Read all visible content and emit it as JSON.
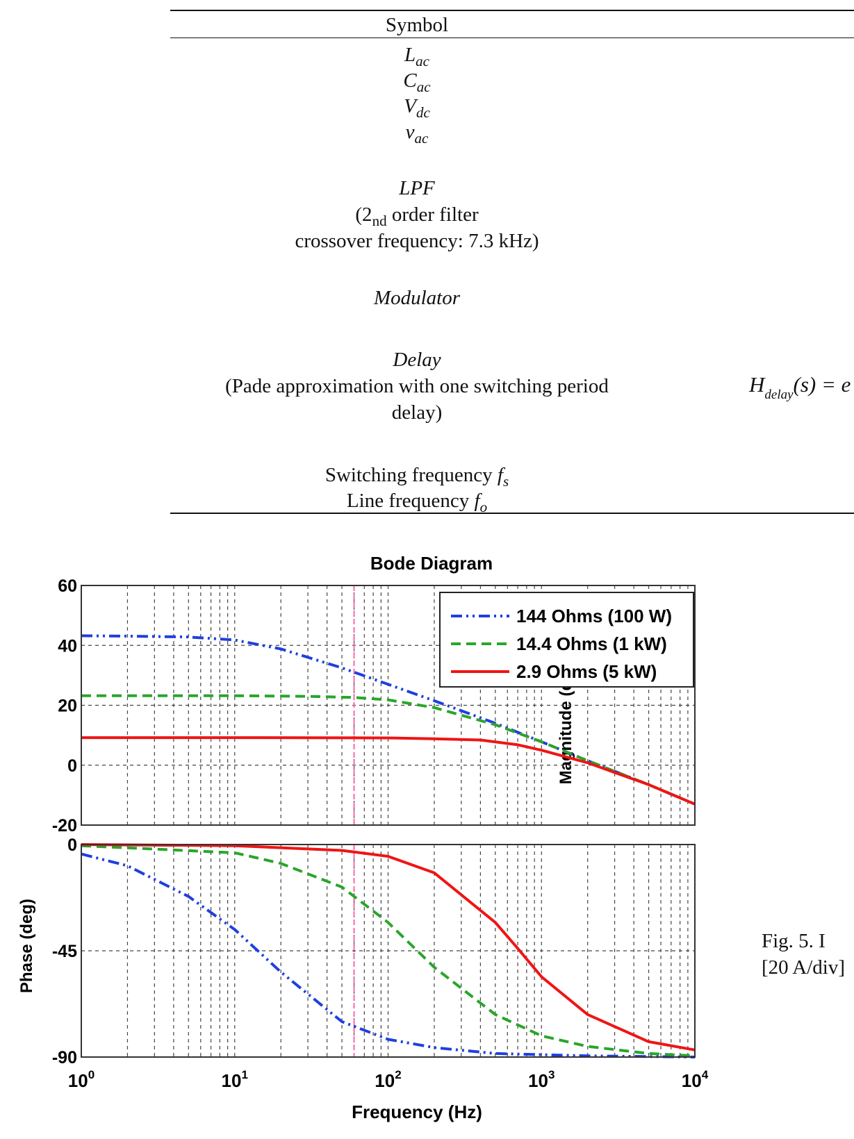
{
  "table": {
    "header": "Symbol",
    "symbols": [
      {
        "base": "L",
        "sub": "ac"
      },
      {
        "base": "C",
        "sub": "ac"
      },
      {
        "base": "V",
        "sub": "dc"
      },
      {
        "base": "v",
        "sub": "ac"
      }
    ],
    "lpf": {
      "name": "LPF",
      "line1_prefix": "(2",
      "line1_sub": "nd",
      "line1_suffix": " order filter",
      "line2": "crossover frequency: 7.3 kHz)"
    },
    "modulator": "Modulator",
    "delay": {
      "name": "Delay",
      "line1": "(Pade approximation with one switching period",
      "line2": "delay)",
      "formula_base": "H",
      "formula_sub": "delay",
      "formula_rest": "(s) = e"
    },
    "switching": {
      "label": "Switching frequency ",
      "symbol": "f",
      "sub": "s"
    },
    "line_freq": {
      "label": "Line frequency ",
      "symbol": "f",
      "sub": "o"
    }
  },
  "caption": {
    "line1": "Fig.  5.   I",
    "line2": "[20 A/div]"
  },
  "chart_data": {
    "type": "line",
    "title": "Bode Diagram",
    "xlabel": "Frequency  (Hz)",
    "x_scale": "log",
    "xlim": [
      1,
      10000
    ],
    "x_ticks": [
      {
        "base": "10",
        "exp": "0"
      },
      {
        "base": "10",
        "exp": "1"
      },
      {
        "base": "10",
        "exp": "2"
      },
      {
        "base": "10",
        "exp": "3"
      },
      {
        "base": "10",
        "exp": "4"
      }
    ],
    "marker_line_hz": 60,
    "grid": true,
    "legend": {
      "placement": "top-right",
      "entries": [
        "144 Ohms (100 W)",
        "14.4 Ohms (1 kW)",
        "2.9 Ohms (5 kW)"
      ]
    },
    "colors": {
      "series1": "#1f3fe0",
      "series2": "#2aa52a",
      "series3": "#f01414",
      "marker": "#ff66aa"
    },
    "magnitude": {
      "ylabel": "Magnitude (dB)",
      "ylim": [
        -20,
        60
      ],
      "y_ticks": [
        "60",
        "40",
        "20",
        "0",
        "-20"
      ],
      "series": [
        {
          "name": "144 Ohms (100 W)",
          "x": [
            1,
            2,
            5,
            10,
            20,
            50,
            100,
            200,
            500,
            1000,
            2000,
            5000,
            10000
          ],
          "y": [
            43.2,
            43.1,
            42.8,
            41.8,
            38.8,
            32.5,
            27,
            21.5,
            14,
            7.8,
            1.5,
            -6.5,
            -13
          ]
        },
        {
          "name": "14.4 Ohms (1 kW)",
          "x": [
            1,
            10,
            30,
            60,
            100,
            200,
            500,
            1000,
            2000,
            5000,
            10000
          ],
          "y": [
            23.2,
            23.2,
            23,
            22.6,
            21.8,
            19.2,
            13.5,
            7.8,
            1.5,
            -6.5,
            -13
          ]
        },
        {
          "name": "2.9 Ohms (5 kW)",
          "x": [
            1,
            10,
            100,
            200,
            400,
            700,
            1000,
            2000,
            5000,
            10000
          ],
          "y": [
            9.2,
            9.2,
            9.1,
            8.8,
            8.4,
            6.8,
            5,
            0.8,
            -6.5,
            -13
          ]
        }
      ]
    },
    "phase": {
      "ylabel": "Phase (deg)",
      "ylim": [
        -90,
        0
      ],
      "y_ticks": [
        "0",
        "-45",
        "-90"
      ],
      "series": [
        {
          "name": "144 Ohms (100 W)",
          "x": [
            1,
            2,
            5,
            10,
            20,
            50,
            100,
            200,
            500,
            1000,
            2000,
            10000
          ],
          "y": [
            -4,
            -9,
            -22,
            -36,
            -54,
            -75,
            -82.5,
            -86,
            -88.5,
            -89,
            -89.5,
            -90
          ]
        },
        {
          "name": "14.4 Ohms (1 kW)",
          "x": [
            1,
            10,
            20,
            50,
            100,
            200,
            500,
            1000,
            2000,
            5000,
            10000
          ],
          "y": [
            -0.5,
            -3.5,
            -8,
            -18,
            -33,
            -52,
            -72,
            -81,
            -85.5,
            -88.5,
            -89.5
          ]
        },
        {
          "name": "2.9 Ohms (5 kW)",
          "x": [
            1,
            10,
            50,
            100,
            200,
            500,
            700,
            1000,
            2000,
            5000,
            10000
          ],
          "y": [
            0,
            -0.5,
            -2.5,
            -5,
            -12,
            -33,
            -44,
            -56,
            -72,
            -83.5,
            -87
          ]
        }
      ]
    }
  }
}
